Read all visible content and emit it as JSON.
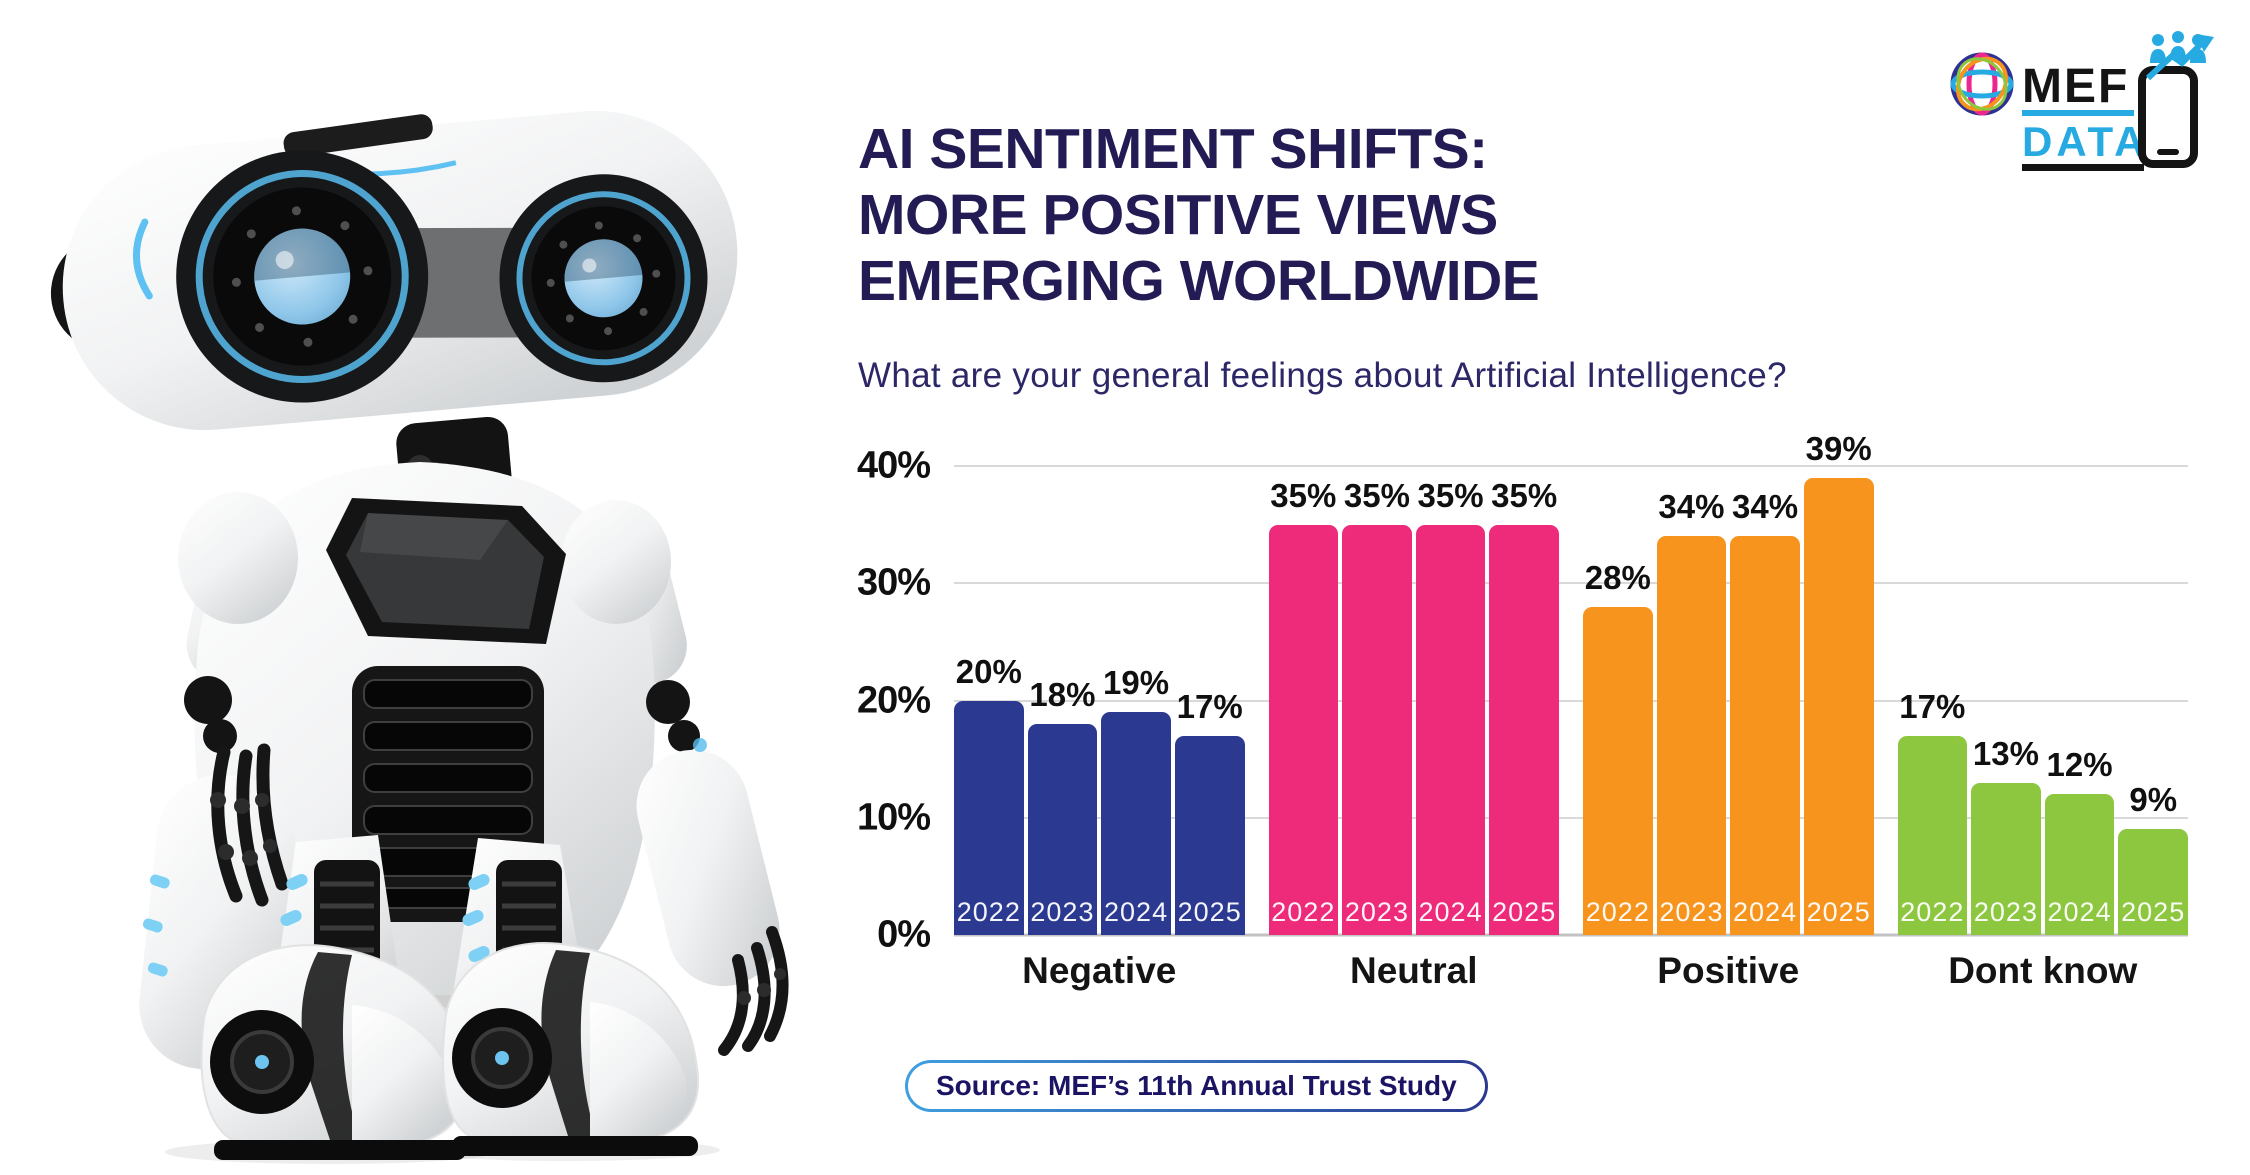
{
  "page": {
    "background": "#ffffff"
  },
  "logo": {
    "mef_label": "MEF",
    "data_label": "DATA",
    "accent_blue": "#27aae1",
    "black": "#141414"
  },
  "header": {
    "title_lines": [
      "AI SENTIMENT SHIFTS:",
      "MORE POSITIVE VIEWS",
      "EMERGING WORLDWIDE"
    ],
    "title_color": "#221b54",
    "subtitle": "What are your general feelings about Artificial Intelligence?"
  },
  "chart_data": {
    "type": "bar",
    "title": "What are your general feelings about Artificial Intelligence?",
    "categories": [
      "Negative",
      "Neutral",
      "Positive",
      "Dont know"
    ],
    "years": [
      "2022",
      "2023",
      "2024",
      "2025"
    ],
    "series": [
      {
        "name": "Negative",
        "color": "#2b3990",
        "values": [
          20,
          18,
          19,
          17
        ]
      },
      {
        "name": "Neutral",
        "color": "#ee2a7b",
        "values": [
          35,
          35,
          35,
          35
        ]
      },
      {
        "name": "Positive",
        "color": "#f7941e",
        "values": [
          28,
          34,
          34,
          39
        ]
      },
      {
        "name": "Dont know",
        "color": "#8dc63f",
        "values": [
          17,
          13,
          12,
          9
        ]
      }
    ],
    "y_axis": {
      "ticks": [
        "0%",
        "10%",
        "20%",
        "30%",
        "40%"
      ],
      "min": 0,
      "max": 40,
      "unit": "%"
    },
    "grid": true,
    "value_label_suffix": "%",
    "legend_position": "none"
  },
  "source": {
    "label": "Source: MEF’s 11th Annual Trust Study"
  }
}
